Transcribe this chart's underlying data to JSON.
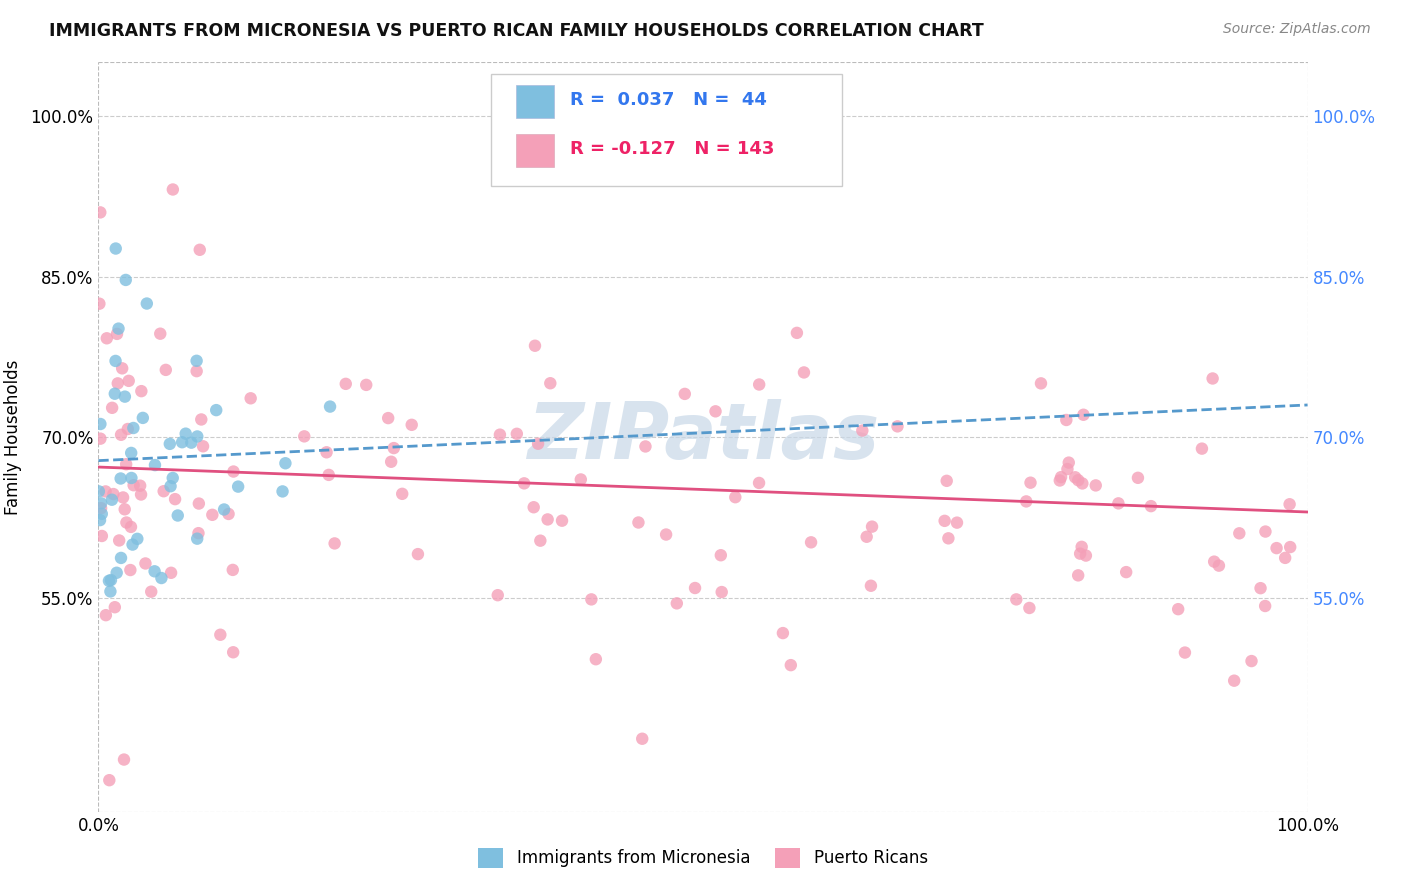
{
  "title": "IMMIGRANTS FROM MICRONESIA VS PUERTO RICAN FAMILY HOUSEHOLDS CORRELATION CHART",
  "source_text": "Source: ZipAtlas.com",
  "ylabel": "Family Households",
  "xlabel": "",
  "watermark": "ZIPatlas",
  "blue_R": 0.037,
  "blue_N": 44,
  "pink_R": -0.127,
  "pink_N": 143,
  "blue_color": "#7fbfdf",
  "pink_color": "#f4a0b8",
  "blue_trend_color": "#5599cc",
  "pink_trend_color": "#e05080",
  "legend1_label": "Immigrants from Micronesia",
  "legend2_label": "Puerto Ricans",
  "xlim": [
    0.0,
    1.0
  ],
  "ylim": [
    0.35,
    1.05
  ],
  "yticks": [
    0.55,
    0.7,
    0.85,
    1.0
  ],
  "ytick_labels": [
    "55.0%",
    "70.0%",
    "85.0%",
    "100.0%"
  ],
  "xtick_labels": [
    "0.0%",
    "100.0%"
  ],
  "blue_trend_x0": 0.0,
  "blue_trend_y0": 0.678,
  "blue_trend_x1": 1.0,
  "blue_trend_y1": 0.73,
  "pink_trend_x0": 0.0,
  "pink_trend_y0": 0.672,
  "pink_trend_x1": 1.0,
  "pink_trend_y1": 0.63
}
